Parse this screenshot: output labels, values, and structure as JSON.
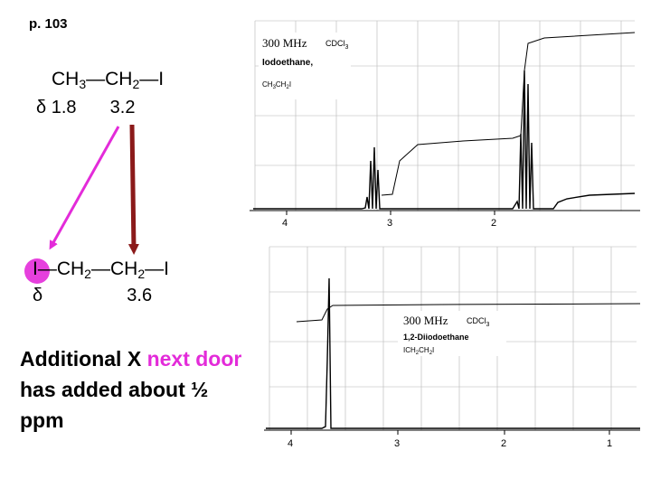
{
  "page_label": "p. 103",
  "formula1": {
    "parts": [
      "CH",
      "3",
      "—CH",
      "2",
      "—I"
    ],
    "shift_symbol": "δ",
    "shift_a": "1.8",
    "shift_b": "3.2"
  },
  "formula2": {
    "parts": [
      "I—CH",
      "2",
      "—CH",
      "2",
      "—I"
    ],
    "shift_symbol": "δ",
    "shift": "3.6"
  },
  "note": {
    "part1": "Additional  X ",
    "highlight": "next door",
    "part2": "has added about ½",
    "part3": "ppm"
  },
  "spectrum1": {
    "freq": "300 MHz",
    "solvent": "CDCl",
    "solvent_sub": "3",
    "compound": "Iodoethane,",
    "structure": "CH",
    "structure_sub1": "3",
    "structure_mid": "CH",
    "structure_sub2": "2",
    "structure_end": "I",
    "ticks": [
      "4",
      "3",
      "2"
    ]
  },
  "spectrum2": {
    "freq": "300 MHz",
    "solvent": "CDCl",
    "solvent_sub": "3",
    "compound": "1,2-Diiodoethane",
    "structure": "ICH",
    "structure_sub1": "2",
    "structure_mid": "CH",
    "structure_sub2": "2",
    "structure_end": "I",
    "ticks": [
      "4",
      "3",
      "2",
      "1"
    ]
  },
  "colors": {
    "arrow_magenta": "#e32bd9",
    "arrow_darkred": "#8b1a1a",
    "highlight": "#e32bd9"
  }
}
